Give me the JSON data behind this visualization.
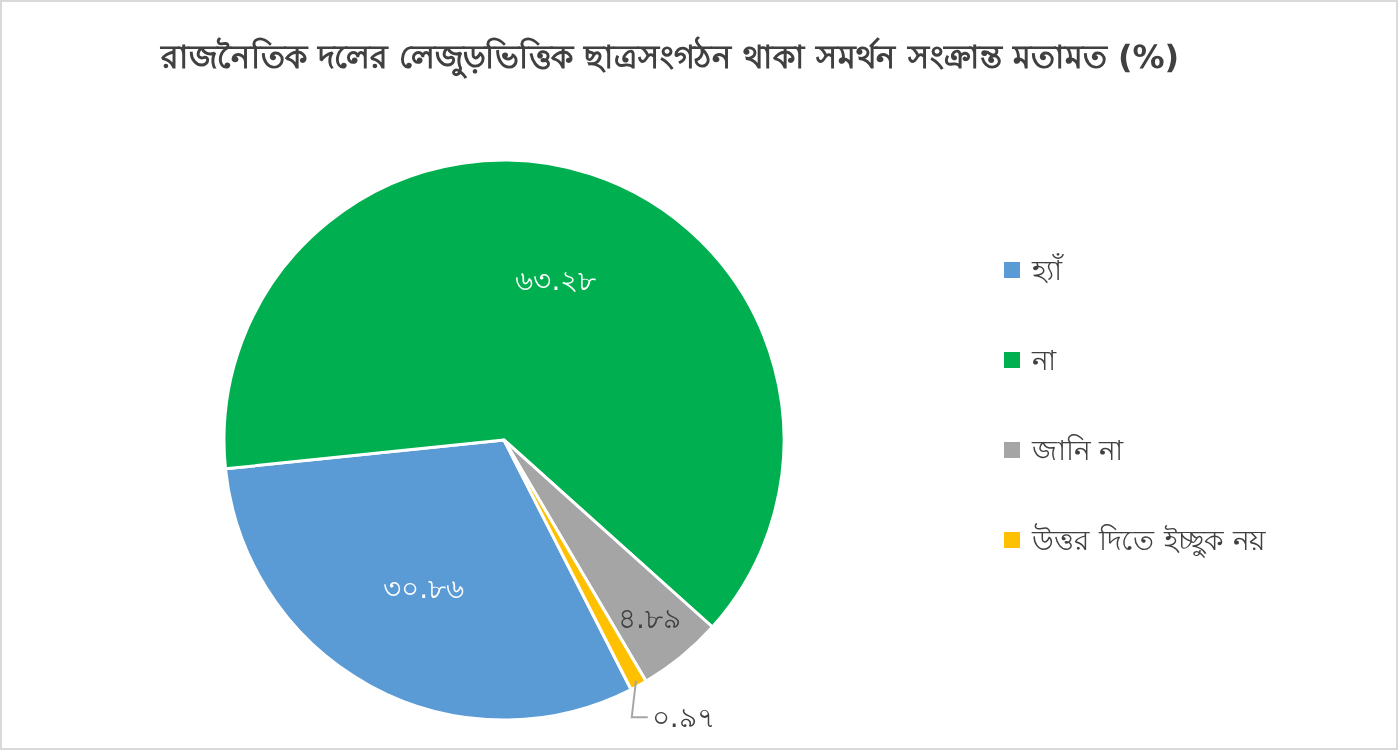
{
  "chart_data": {
    "type": "pie",
    "title": "রাজনৈতিক দলের লেজুড়ভিত্তিক ছাত্রসংগঠন থাকা সমর্থন সংক্রান্ত মতামত (%)",
    "categories": [
      "হ্যাঁ",
      "না",
      "জানি না",
      "উত্তর দিতে ইচ্ছুক নয়"
    ],
    "values": [
      30.86,
      63.28,
      4.89,
      0.97
    ],
    "colors": [
      "#5b9bd5",
      "#00b050",
      "#a5a5a5",
      "#ffc000"
    ],
    "value_labels": [
      "৩০.৮৬",
      "৬৩.২৮",
      "৪.৮৯",
      "০.৯৭"
    ],
    "legend": "right"
  }
}
